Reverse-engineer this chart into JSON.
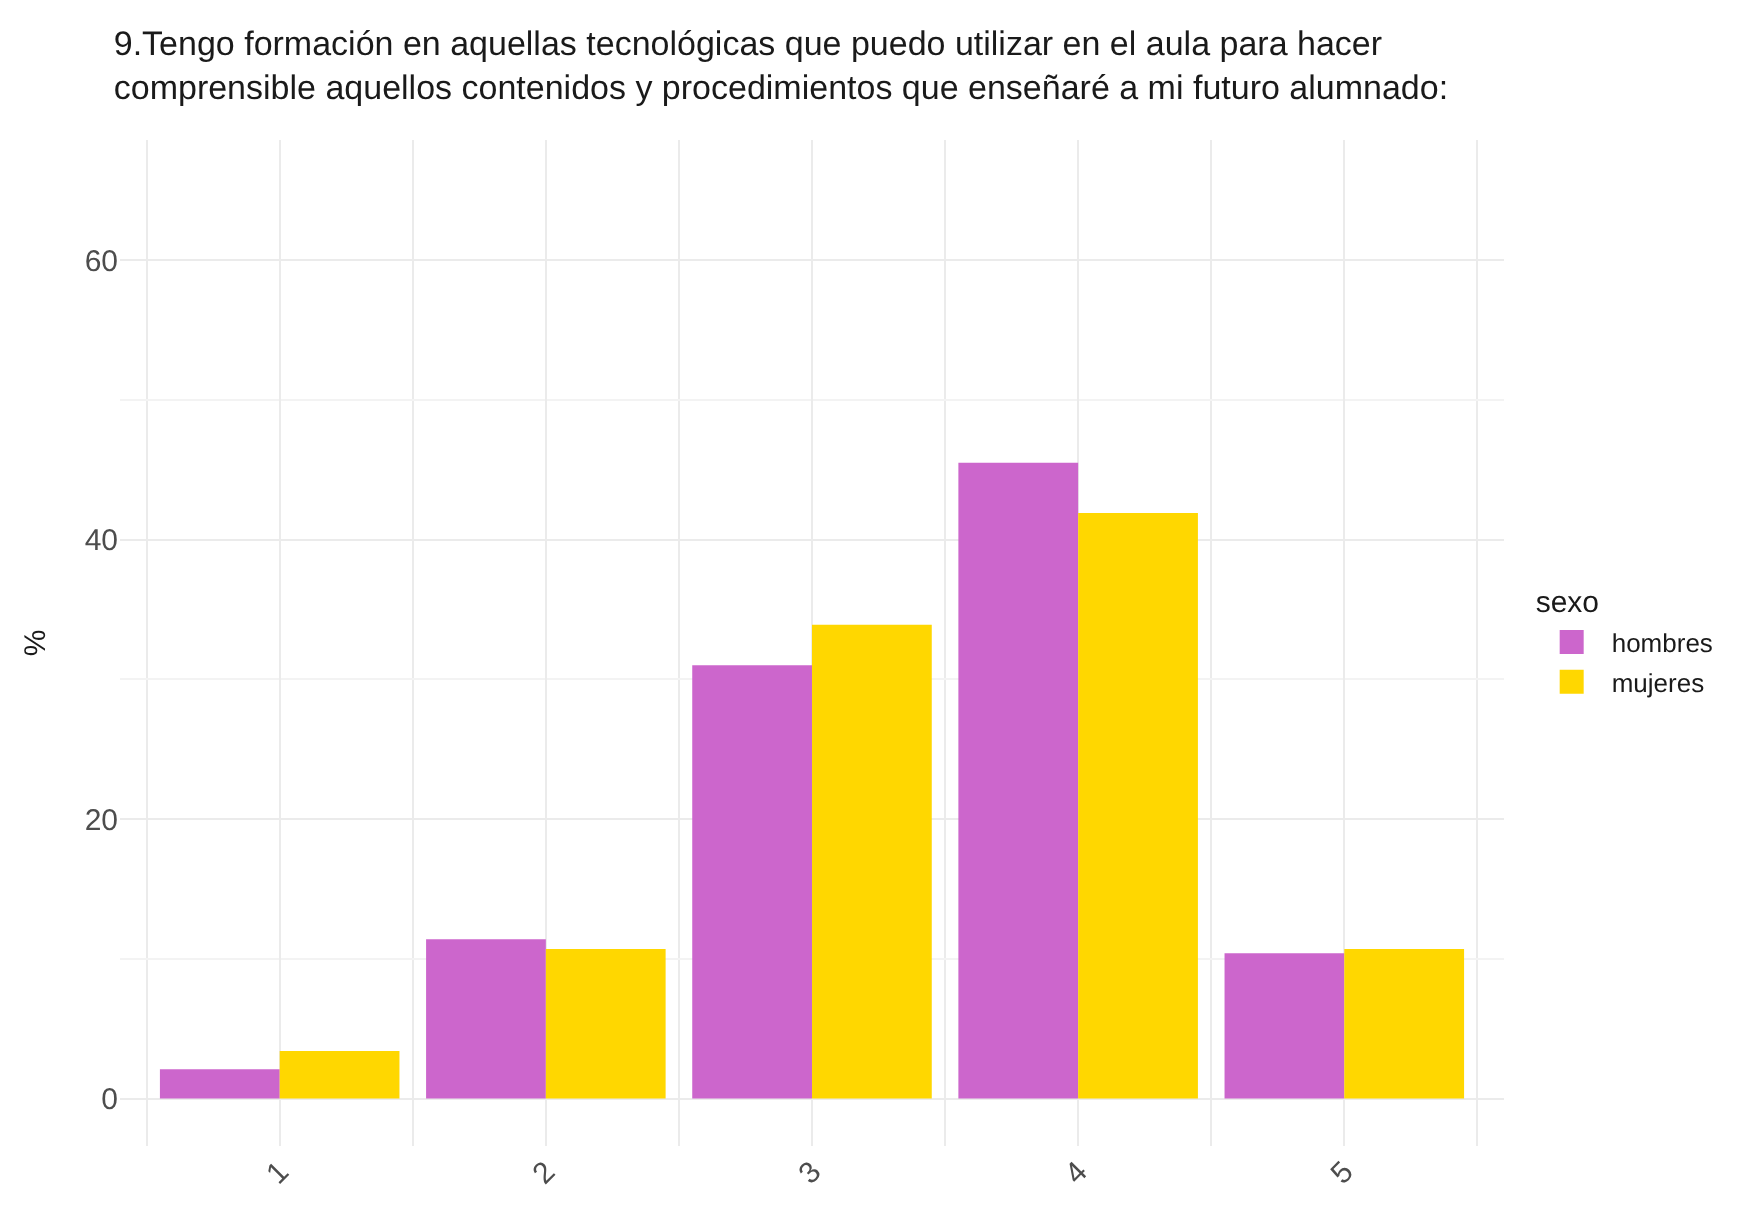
{
  "chart_data": {
    "type": "bar",
    "title": "9.Tengo formación en aquellas tecnológicas que puedo utilizar en el aula para hacer\ncomprensible aquellos contenidos y procedimientos que enseñaré a mi futuro alumnado:",
    "ylabel": "%",
    "legend_title": "sexo",
    "categories": [
      "1",
      "2",
      "3",
      "4",
      "5"
    ],
    "series": [
      {
        "name": "hombres",
        "color": "#cc66cc",
        "values": [
          2.1,
          11.4,
          31.0,
          45.5,
          10.4
        ]
      },
      {
        "name": "mujeres",
        "color": "#ffd700",
        "values": [
          3.4,
          10.7,
          33.9,
          41.9,
          10.7
        ]
      }
    ],
    "ylim": [
      -3.4,
      68.6
    ],
    "yticks": [
      0,
      20,
      40,
      60
    ],
    "grid": true,
    "legend": "right"
  }
}
